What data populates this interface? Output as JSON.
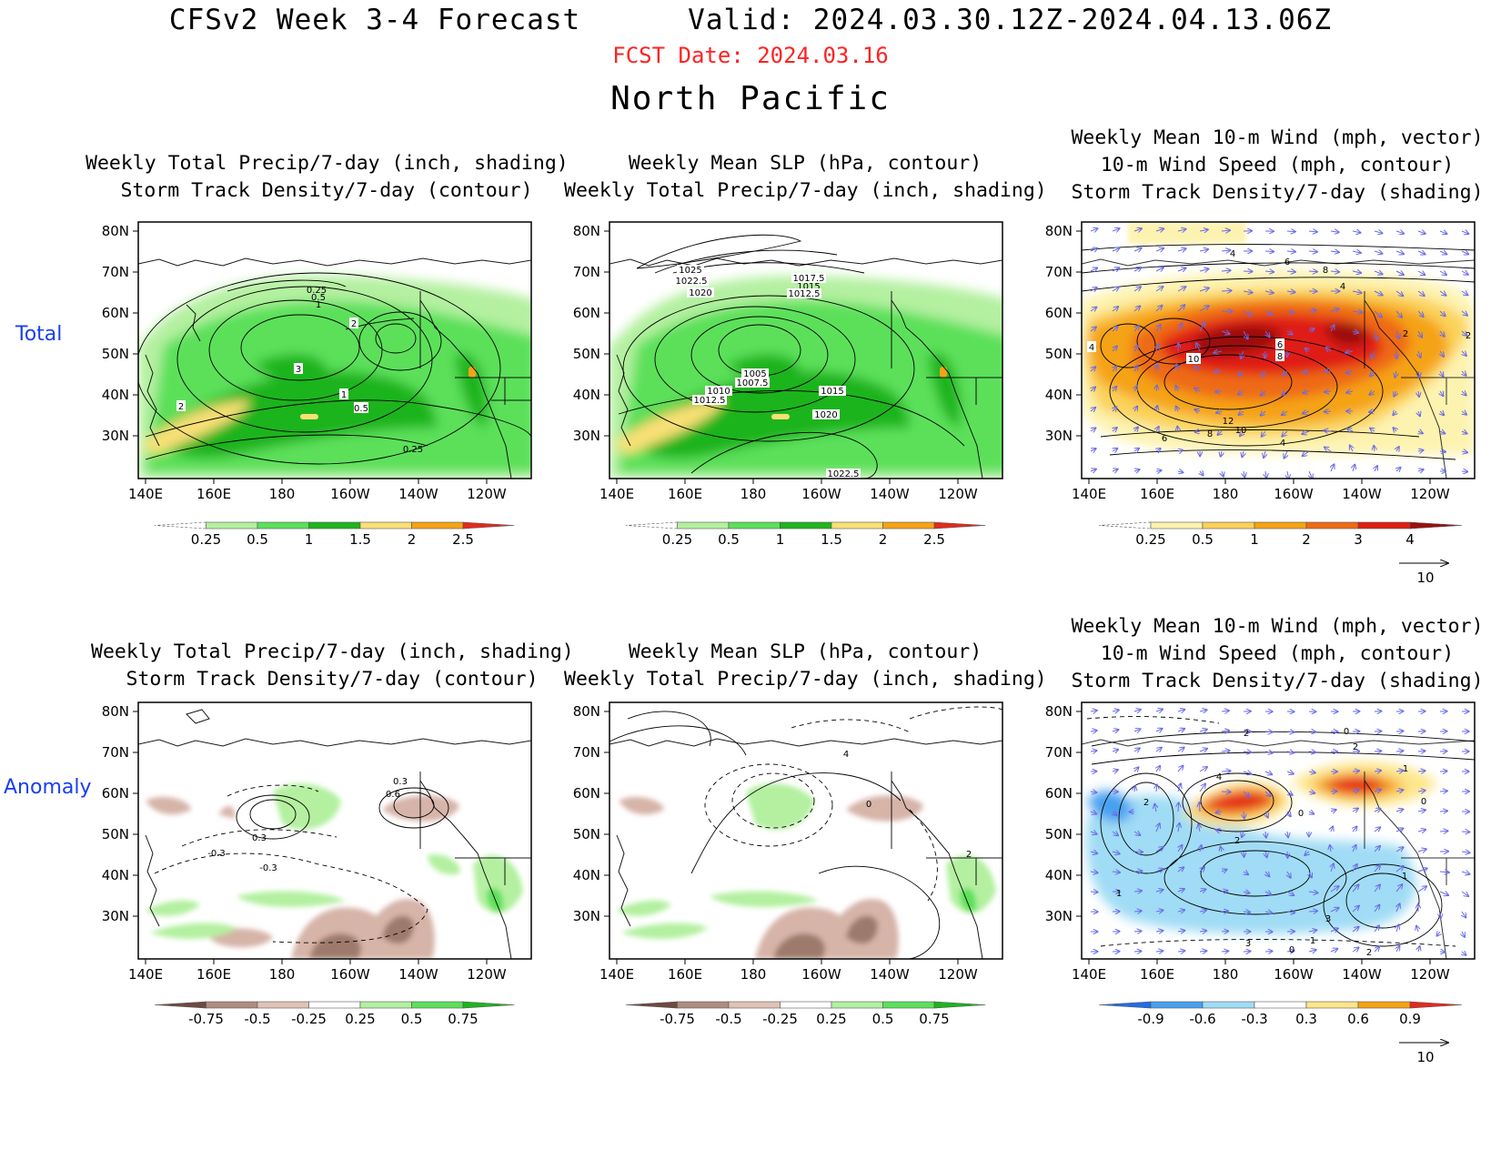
{
  "header": {
    "title": "CFSv2 Week 3-4 Forecast      Valid: 2024.03.30.12Z-2024.04.13.06Z",
    "fcst_date": "FCST Date: 2024.03.16",
    "region": "North Pacific"
  },
  "rows": [
    {
      "label": "Total"
    },
    {
      "label": "Anomaly"
    }
  ],
  "panel_titles": {
    "precip": [
      "Weekly Total Precip/7-day (inch, shading)",
      "Storm Track Density/7-day (contour)"
    ],
    "slp": [
      "Weekly Mean SLP (hPa, contour)",
      "Weekly Total Precip/7-day (inch, shading)"
    ],
    "wind": [
      "Weekly Mean 10-m Wind (mph, vector)",
      "10-m Wind Speed (mph, contour)",
      "Storm Track Density/7-day (shading)"
    ]
  },
  "axes": {
    "lat_labels": [
      "80N",
      "70N",
      "60N",
      "50N",
      "40N",
      "30N"
    ],
    "lon_labels": [
      "140E",
      "160E",
      "180",
      "160W",
      "140W",
      "120W"
    ]
  },
  "colorbars": {
    "precip_total": {
      "labels": [
        "0.25",
        "0.5",
        "1",
        "1.5",
        "2",
        "2.5"
      ],
      "colors": [
        "#ffffff",
        "#b4f0a0",
        "#5ce05a",
        "#1eb41e",
        "#f9e076",
        "#f5a314",
        "#e4291e"
      ]
    },
    "storm_total": {
      "labels": [
        "0.25",
        "0.5",
        "1",
        "2",
        "3",
        "4"
      ],
      "colors": [
        "#ffffff",
        "#fdf3b0",
        "#fbd25a",
        "#f5a314",
        "#ee6a14",
        "#e01e14",
        "#9a1010"
      ]
    },
    "precip_anom": {
      "labels": [
        "-0.75",
        "-0.5",
        "-0.25",
        "0.25",
        "0.5",
        "0.75"
      ],
      "colors": [
        "#6e4a40",
        "#b08c80",
        "#e0c2b6",
        "#ffffff",
        "#b4f0a0",
        "#5ce05a",
        "#1eb41e"
      ]
    },
    "storm_anom": {
      "labels": [
        "-0.9",
        "-0.6",
        "-0.3",
        "0.3",
        "0.6",
        "0.9"
      ],
      "colors": [
        "#1e6ee6",
        "#46a0f0",
        "#a0dcf5",
        "#ffffff",
        "#fde68a",
        "#f5a314",
        "#e4291e"
      ]
    }
  },
  "vector_ref": "10",
  "contour_labels": {
    "p1": [
      "0.25",
      "0.5",
      "1",
      "2",
      "3",
      "1",
      "0.5",
      "2",
      "0.25"
    ],
    "s1": [
      "1025",
      "1022.5",
      "1020",
      "1017.5",
      "1015",
      "1012.5",
      "1005",
      "1007.5",
      "1010",
      "1012.5",
      "1015",
      "1020",
      "1022.5"
    ],
    "w1": [
      "4",
      "6",
      "8",
      "4",
      "2",
      "2",
      "4",
      "10",
      "6",
      "8",
      "12",
      "10",
      "8",
      "6",
      "4"
    ],
    "p2": [
      "0.3",
      "0.6",
      "0.3",
      "-0.3",
      "-0.3"
    ],
    "s2": [
      "4",
      "0",
      "2"
    ],
    "w2": [
      "2",
      "0",
      "2",
      "1",
      "4",
      "2",
      "2",
      "0",
      "0",
      "1",
      "3",
      "1",
      "0",
      "1",
      "3",
      "2"
    ]
  }
}
